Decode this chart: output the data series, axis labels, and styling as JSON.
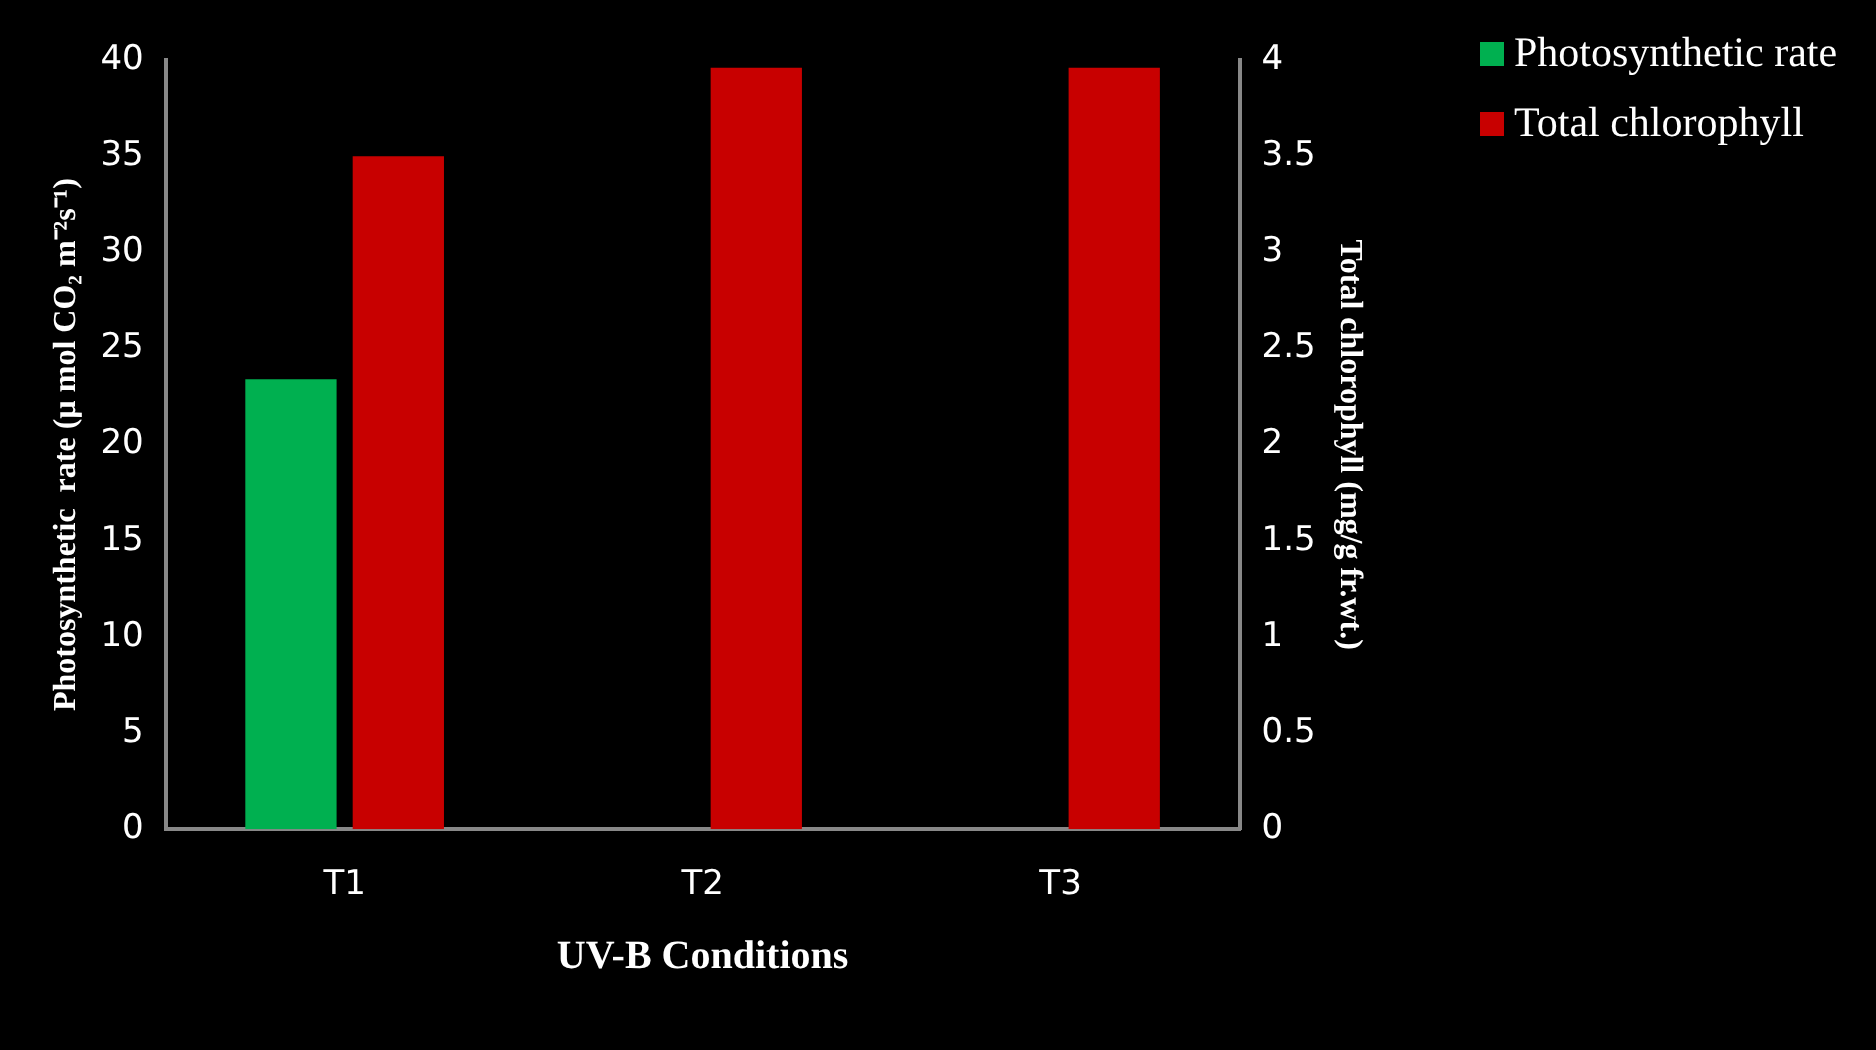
{
  "chart_data": {
    "type": "bar",
    "categories": [
      "T1",
      "T2",
      "T3"
    ],
    "xlabel": "UV-B Conditions",
    "ylabel": "Photosynthetic  rate (µ mol CO₂ m⁻²s⁻¹)",
    "y2label": "Total chlorophyll (mg/g fr.wt.)",
    "series": [
      {
        "name": "Photosynthetic rate",
        "color": "#00b050",
        "values": [
          23.4,
          null,
          null
        ]
      },
      {
        "name": "Total chlorophyll",
        "color": "#c80000",
        "values": [
          3.5,
          3.96,
          3.96
        ],
        "axis": "y2"
      }
    ],
    "ylim": [
      0,
      40
    ],
    "yticks": [
      0,
      5,
      10,
      15,
      20,
      25,
      30,
      35,
      40
    ],
    "y2lim": [
      0,
      4
    ],
    "y2ticks": [
      0,
      0.5,
      1,
      1.5,
      2,
      2.5,
      3,
      3.5,
      4
    ],
    "grid": false,
    "legend": "top right"
  }
}
